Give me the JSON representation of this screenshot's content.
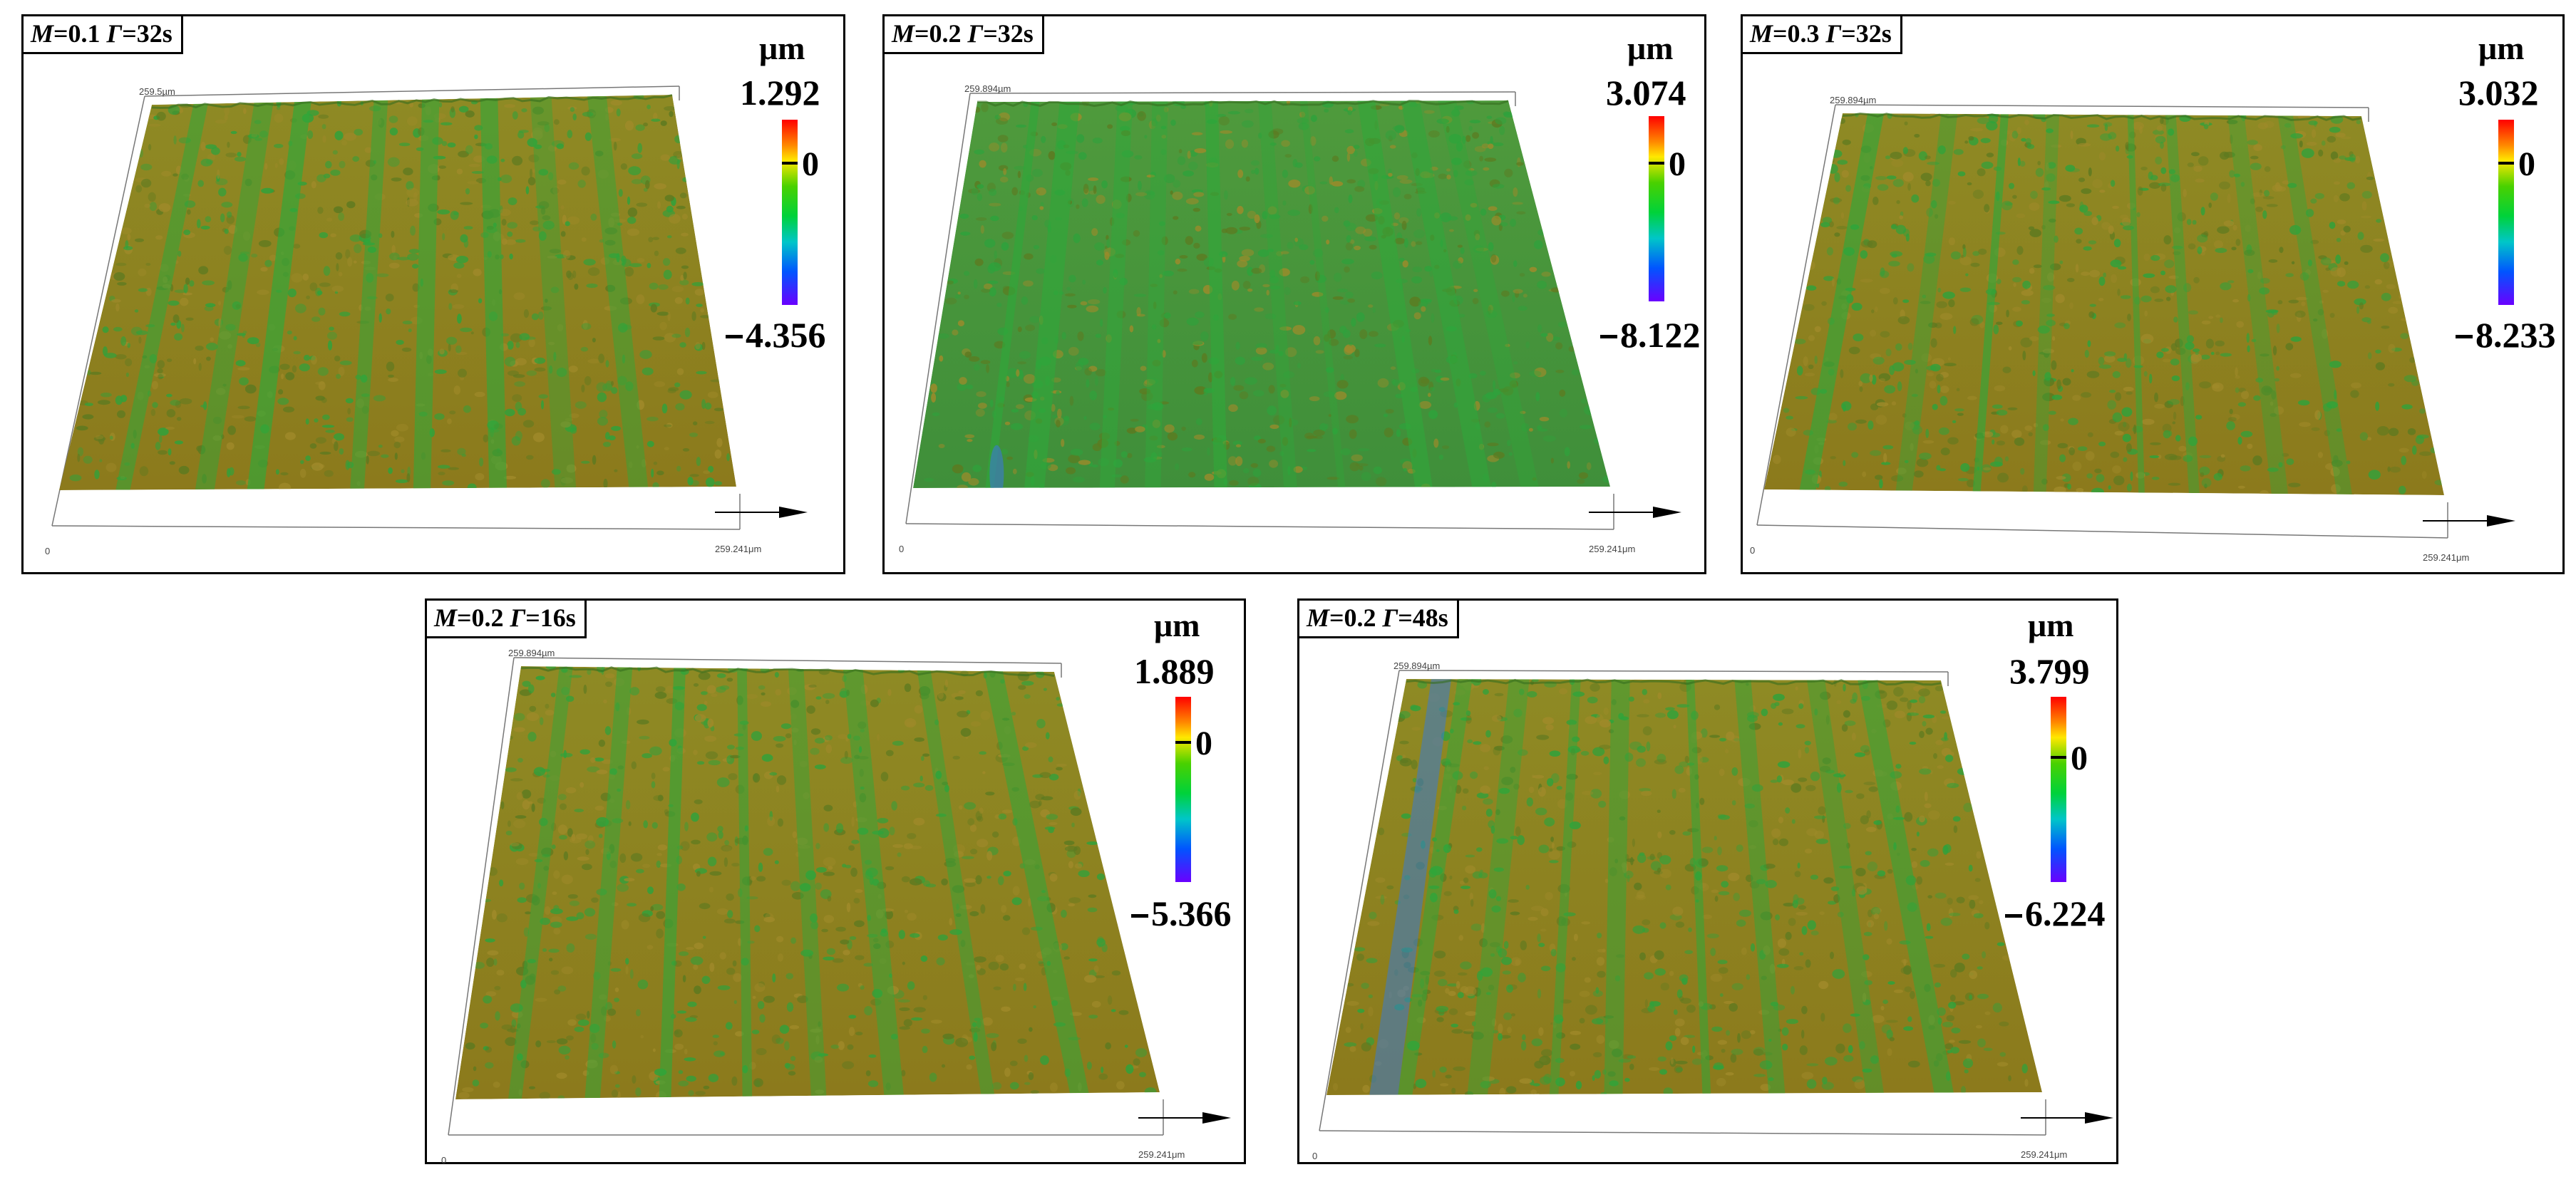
{
  "panels": [
    {
      "M_label": "M",
      "M_value": "=0.1",
      "G_label": "Γ",
      "G_value": "=32s",
      "unit": "μm",
      "max": "1.292",
      "zero": "0",
      "min": "4.356",
      "axis_origin": "0",
      "axis_x_end": "259.241μm",
      "axis_y_end": "259.5µm",
      "palette": "olive"
    },
    {
      "M_label": "M",
      "M_value": "=0.2",
      "G_label": "Γ",
      "G_value": "=32s",
      "unit": "μm",
      "max": "3.074",
      "zero": "0",
      "min": "8.122",
      "axis_origin": "0",
      "axis_x_end": "259.241μm",
      "axis_y_end": "259.894µm",
      "palette": "green"
    },
    {
      "M_label": "M",
      "M_value": "=0.3",
      "G_label": "Γ",
      "G_value": "=32s",
      "unit": "μm",
      "max": "3.032",
      "zero": "0",
      "min": "8.233",
      "axis_origin": "0",
      "axis_x_end": "259.241μm",
      "axis_y_end": "259.894µm",
      "palette": "mix"
    },
    {
      "M_label": "M",
      "M_value": "=0.2",
      "G_label": "Γ",
      "G_value": "=16s",
      "unit": "μm",
      "max": "1.889",
      "zero": "0",
      "min": "5.366",
      "axis_origin": "0",
      "axis_x_end": "259.241μm",
      "axis_y_end": "259.894µm",
      "palette": "mix"
    },
    {
      "M_label": "M",
      "M_value": "=0.2",
      "G_label": "Γ",
      "G_value": "=48s",
      "unit": "μm",
      "max": "3.799",
      "zero": "0",
      "min": "6.224",
      "axis_origin": "0",
      "axis_x_end": "259.241μm",
      "axis_y_end": "259.894µm",
      "palette": "mix"
    }
  ],
  "colors": {
    "olive_surface": "#8c7a1c",
    "green_surface": "#3f8f3a",
    "streak": "#2fa83a",
    "deep": "#3a7ad0",
    "border": "#000000"
  },
  "icons": {
    "axis_arrow": "arrow-right-icon",
    "surface": "height-map-surface"
  }
}
